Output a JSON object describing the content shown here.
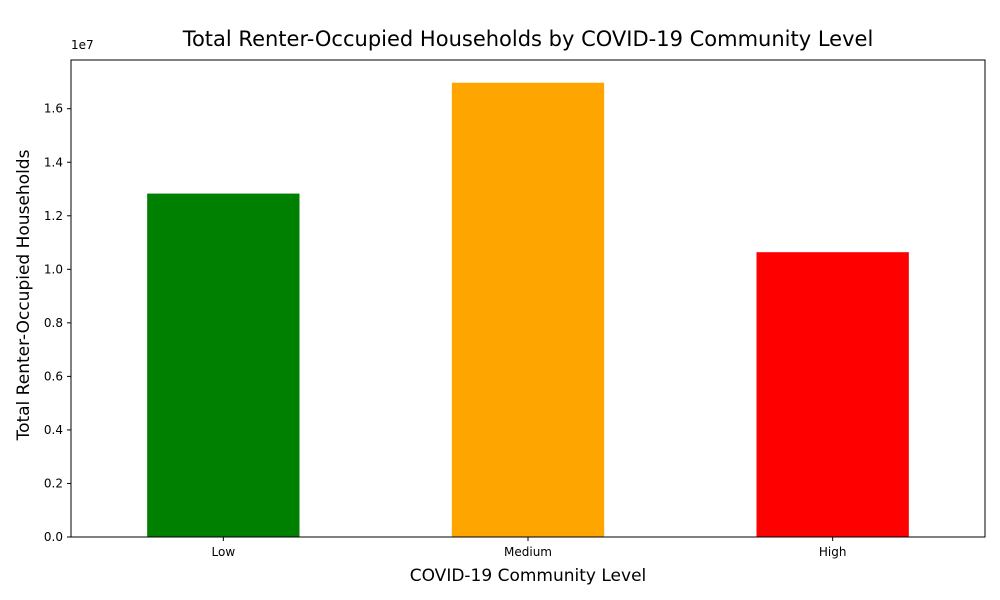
{
  "chart_data": {
    "type": "bar",
    "title": "Total Renter-Occupied Households by COVID-19 Community Level",
    "xlabel": "COVID-19 Community Level",
    "ylabel": "Total Renter-Occupied Households",
    "categories": [
      "Low",
      "Medium",
      "High"
    ],
    "values": [
      12830000,
      16970000,
      10640000
    ],
    "colors": [
      "#008000",
      "#ffa500",
      "#ff0000"
    ],
    "ylim": [
      0,
      17820000
    ],
    "yticks": [
      0,
      2000000,
      4000000,
      6000000,
      8000000,
      10000000,
      12000000,
      14000000,
      16000000
    ],
    "ytick_labels": [
      "0.0",
      "0.2",
      "0.4",
      "0.6",
      "0.8",
      "1.0",
      "1.2",
      "1.4",
      "1.6"
    ],
    "scale_note": "1e7",
    "grid": false,
    "legend": "none"
  }
}
